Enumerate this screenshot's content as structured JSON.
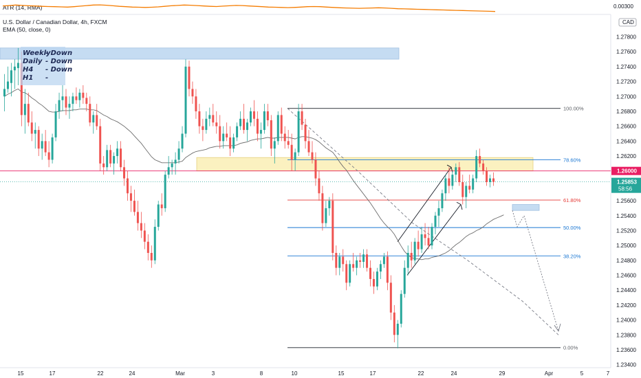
{
  "indicators": {
    "atr_label": "ATR (14, RMA)",
    "symbol_line": "U.S. Dollar / Canadian Dollar, 4h, FXCM",
    "ema_label": "EMA (50, close, 0)",
    "atr_level": "0.00300",
    "currency": "CAD"
  },
  "notes": [
    {
      "tf": "Weekly",
      "dir": "- Down"
    },
    {
      "tf": "Daily",
      "dir": "- Down"
    },
    {
      "tf": "H4",
      "dir": "- Down"
    },
    {
      "tf": "H1",
      "dir": "-"
    }
  ],
  "price_badges": {
    "level": "1.26000",
    "last": "1.25853",
    "countdown": "58:56"
  },
  "colors": {
    "up": "#26a69a",
    "down": "#ef5350",
    "ema": "#6d6d6d",
    "atr": "#f57c00",
    "zone_blue": "#bbd6f0",
    "zone_yellow": "#fbefb6",
    "level_red": "#e91e63",
    "fib_red": "#e53935",
    "fib_blue": "#1976d2",
    "fib_grey": "#5d6066"
  },
  "chart_data": {
    "type": "candlestick",
    "symbol": "USDCAD",
    "timeframe": "4h",
    "ylim": [
      1.2336,
      1.281
    ],
    "ytick_labels": [
      "1.27800",
      "1.27600",
      "1.27400",
      "1.27200",
      "1.27000",
      "1.26800",
      "1.26600",
      "1.26400",
      "1.26200",
      "1.26000",
      "1.25800",
      "1.25600",
      "1.25400",
      "1.25200",
      "1.25000",
      "1.24800",
      "1.24600",
      "1.24400",
      "1.24200",
      "1.24000",
      "1.23800",
      "1.23600",
      "1.23400"
    ],
    "xtick_labels": [
      "15",
      "17",
      "22",
      "24",
      "Mar",
      "3",
      "8",
      "10",
      "15",
      "17",
      "22",
      "24",
      "29",
      "Apr",
      "5",
      "7"
    ],
    "fib_levels": [
      {
        "label": "100.00%",
        "price": 1.2684
      },
      {
        "label": "78.60%",
        "price": 1.2615
      },
      {
        "label": "61.80%",
        "price": 1.2561
      },
      {
        "label": "50.00%",
        "price": 1.2524
      },
      {
        "label": "38.20%",
        "price": 1.2486
      },
      {
        "label": "0.00%",
        "price": 1.2363
      }
    ],
    "horizontal_level": 1.26,
    "last_price": 1.25853,
    "zones": [
      {
        "name": "resistance",
        "from": 1.275,
        "to": 1.2765
      },
      {
        "name": "supply",
        "from": 1.26,
        "to": 1.2618
      },
      {
        "name": "target",
        "from": 1.2547,
        "to": 1.2555
      }
    ],
    "path_points": [
      1.2684,
      1.26,
      1.253,
      1.248,
      1.2425,
      1.238
    ],
    "forecast_points": [
      1.2547,
      1.2525,
      1.254,
      1.2385
    ],
    "channel_lower": [
      1.246,
      1.2555
    ],
    "channel_upper": [
      1.2505,
      1.2605
    ],
    "series": [
      {
        "o": 1.27,
        "h": 1.273,
        "l": 1.268,
        "c": 1.271
      },
      {
        "o": 1.271,
        "h": 1.274,
        "l": 1.2705,
        "c": 1.272
      },
      {
        "o": 1.2718,
        "h": 1.2745,
        "l": 1.27,
        "c": 1.2735
      },
      {
        "o": 1.2735,
        "h": 1.275,
        "l": 1.271,
        "c": 1.274
      },
      {
        "o": 1.2738,
        "h": 1.2765,
        "l": 1.2715,
        "c": 1.2745
      },
      {
        "o": 1.2745,
        "h": 1.276,
        "l": 1.266,
        "c": 1.2675
      },
      {
        "o": 1.2675,
        "h": 1.271,
        "l": 1.265,
        "c": 1.269
      },
      {
        "o": 1.269,
        "h": 1.2705,
        "l": 1.266,
        "c": 1.2665
      },
      {
        "o": 1.2665,
        "h": 1.268,
        "l": 1.264,
        "c": 1.265
      },
      {
        "o": 1.265,
        "h": 1.2665,
        "l": 1.263,
        "c": 1.2655
      },
      {
        "o": 1.2655,
        "h": 1.266,
        "l": 1.262,
        "c": 1.263
      },
      {
        "o": 1.263,
        "h": 1.265,
        "l": 1.2615,
        "c": 1.264
      },
      {
        "o": 1.264,
        "h": 1.2655,
        "l": 1.262,
        "c": 1.2625
      },
      {
        "o": 1.2625,
        "h": 1.264,
        "l": 1.2605,
        "c": 1.2615
      },
      {
        "o": 1.2615,
        "h": 1.265,
        "l": 1.261,
        "c": 1.2645
      },
      {
        "o": 1.2645,
        "h": 1.269,
        "l": 1.264,
        "c": 1.268
      },
      {
        "o": 1.268,
        "h": 1.2705,
        "l": 1.267,
        "c": 1.2695
      },
      {
        "o": 1.2695,
        "h": 1.2715,
        "l": 1.268,
        "c": 1.27
      },
      {
        "o": 1.27,
        "h": 1.271,
        "l": 1.2675,
        "c": 1.2685
      },
      {
        "o": 1.2685,
        "h": 1.27,
        "l": 1.267,
        "c": 1.269
      },
      {
        "o": 1.269,
        "h": 1.2705,
        "l": 1.268,
        "c": 1.27
      },
      {
        "o": 1.27,
        "h": 1.2712,
        "l": 1.269,
        "c": 1.2695
      },
      {
        "o": 1.2695,
        "h": 1.271,
        "l": 1.2685,
        "c": 1.2705
      },
      {
        "o": 1.2705,
        "h": 1.2715,
        "l": 1.269,
        "c": 1.2698
      },
      {
        "o": 1.2698,
        "h": 1.2705,
        "l": 1.268,
        "c": 1.269
      },
      {
        "o": 1.269,
        "h": 1.27,
        "l": 1.266,
        "c": 1.2665
      },
      {
        "o": 1.2665,
        "h": 1.268,
        "l": 1.265,
        "c": 1.2675
      },
      {
        "o": 1.2675,
        "h": 1.269,
        "l": 1.2655,
        "c": 1.266
      },
      {
        "o": 1.266,
        "h": 1.267,
        "l": 1.26,
        "c": 1.261
      },
      {
        "o": 1.261,
        "h": 1.262,
        "l": 1.2595,
        "c": 1.2605
      },
      {
        "o": 1.2605,
        "h": 1.2635,
        "l": 1.26,
        "c": 1.2628
      },
      {
        "o": 1.2628,
        "h": 1.2635,
        "l": 1.2605,
        "c": 1.261
      },
      {
        "o": 1.261,
        "h": 1.2625,
        "l": 1.2595,
        "c": 1.262
      },
      {
        "o": 1.262,
        "h": 1.264,
        "l": 1.261,
        "c": 1.263
      },
      {
        "o": 1.263,
        "h": 1.264,
        "l": 1.26,
        "c": 1.2605
      },
      {
        "o": 1.2605,
        "h": 1.2615,
        "l": 1.258,
        "c": 1.259
      },
      {
        "o": 1.259,
        "h": 1.26,
        "l": 1.256,
        "c": 1.257
      },
      {
        "o": 1.257,
        "h": 1.258,
        "l": 1.2545,
        "c": 1.256
      },
      {
        "o": 1.256,
        "h": 1.2575,
        "l": 1.254,
        "c": 1.2545
      },
      {
        "o": 1.2545,
        "h": 1.256,
        "l": 1.252,
        "c": 1.253
      },
      {
        "o": 1.253,
        "h": 1.2545,
        "l": 1.251,
        "c": 1.252
      },
      {
        "o": 1.252,
        "h": 1.253,
        "l": 1.2495,
        "c": 1.2505
      },
      {
        "o": 1.2505,
        "h": 1.2515,
        "l": 1.248,
        "c": 1.249
      },
      {
        "o": 1.249,
        "h": 1.25,
        "l": 1.247,
        "c": 1.248
      },
      {
        "o": 1.248,
        "h": 1.2535,
        "l": 1.2475,
        "c": 1.2525
      },
      {
        "o": 1.2525,
        "h": 1.256,
        "l": 1.252,
        "c": 1.2555
      },
      {
        "o": 1.2555,
        "h": 1.257,
        "l": 1.254,
        "c": 1.255
      },
      {
        "o": 1.255,
        "h": 1.26,
        "l": 1.2545,
        "c": 1.2595
      },
      {
        "o": 1.2595,
        "h": 1.262,
        "l": 1.259,
        "c": 1.2605
      },
      {
        "o": 1.2605,
        "h": 1.2615,
        "l": 1.2595,
        "c": 1.261
      },
      {
        "o": 1.261,
        "h": 1.2625,
        "l": 1.2595,
        "c": 1.2615
      },
      {
        "o": 1.2615,
        "h": 1.264,
        "l": 1.261,
        "c": 1.263
      },
      {
        "o": 1.263,
        "h": 1.266,
        "l": 1.2625,
        "c": 1.265
      },
      {
        "o": 1.265,
        "h": 1.275,
        "l": 1.2645,
        "c": 1.274
      },
      {
        "o": 1.274,
        "h": 1.2748,
        "l": 1.27,
        "c": 1.271
      },
      {
        "o": 1.271,
        "h": 1.272,
        "l": 1.269,
        "c": 1.27
      },
      {
        "o": 1.27,
        "h": 1.271,
        "l": 1.267,
        "c": 1.268
      },
      {
        "o": 1.268,
        "h": 1.269,
        "l": 1.265,
        "c": 1.266
      },
      {
        "o": 1.266,
        "h": 1.267,
        "l": 1.264,
        "c": 1.2655
      },
      {
        "o": 1.2655,
        "h": 1.268,
        "l": 1.265,
        "c": 1.267
      },
      {
        "o": 1.267,
        "h": 1.2685,
        "l": 1.266,
        "c": 1.2675
      },
      {
        "o": 1.2675,
        "h": 1.269,
        "l": 1.266,
        "c": 1.2665
      },
      {
        "o": 1.2665,
        "h": 1.268,
        "l": 1.265,
        "c": 1.266
      },
      {
        "o": 1.266,
        "h": 1.2675,
        "l": 1.263,
        "c": 1.264
      },
      {
        "o": 1.264,
        "h": 1.266,
        "l": 1.263,
        "c": 1.265
      },
      {
        "o": 1.265,
        "h": 1.2665,
        "l": 1.264,
        "c": 1.2645
      },
      {
        "o": 1.2645,
        "h": 1.266,
        "l": 1.262,
        "c": 1.263
      },
      {
        "o": 1.263,
        "h": 1.265,
        "l": 1.2625,
        "c": 1.2645
      },
      {
        "o": 1.2645,
        "h": 1.2665,
        "l": 1.264,
        "c": 1.266
      },
      {
        "o": 1.266,
        "h": 1.268,
        "l": 1.2655,
        "c": 1.267
      },
      {
        "o": 1.267,
        "h": 1.269,
        "l": 1.265,
        "c": 1.2655
      },
      {
        "o": 1.2655,
        "h": 1.267,
        "l": 1.264,
        "c": 1.2665
      },
      {
        "o": 1.2665,
        "h": 1.2685,
        "l": 1.266,
        "c": 1.268
      },
      {
        "o": 1.268,
        "h": 1.2695,
        "l": 1.266,
        "c": 1.267
      },
      {
        "o": 1.267,
        "h": 1.268,
        "l": 1.264,
        "c": 1.265
      },
      {
        "o": 1.265,
        "h": 1.2665,
        "l": 1.263,
        "c": 1.2655
      },
      {
        "o": 1.2655,
        "h": 1.269,
        "l": 1.265,
        "c": 1.268
      },
      {
        "o": 1.268,
        "h": 1.269,
        "l": 1.266,
        "c": 1.2668
      },
      {
        "o": 1.2668,
        "h": 1.2675,
        "l": 1.262,
        "c": 1.263
      },
      {
        "o": 1.263,
        "h": 1.2645,
        "l": 1.261,
        "c": 1.264
      },
      {
        "o": 1.264,
        "h": 1.268,
        "l": 1.2635,
        "c": 1.2675
      },
      {
        "o": 1.2675,
        "h": 1.2685,
        "l": 1.264,
        "c": 1.265
      },
      {
        "o": 1.265,
        "h": 1.266,
        "l": 1.263,
        "c": 1.264
      },
      {
        "o": 1.264,
        "h": 1.2655,
        "l": 1.263,
        "c": 1.2635
      },
      {
        "o": 1.2635,
        "h": 1.265,
        "l": 1.26,
        "c": 1.2615
      },
      {
        "o": 1.2615,
        "h": 1.263,
        "l": 1.26,
        "c": 1.2625
      },
      {
        "o": 1.2625,
        "h": 1.269,
        "l": 1.262,
        "c": 1.268
      },
      {
        "o": 1.268,
        "h": 1.269,
        "l": 1.2655,
        "c": 1.2662
      },
      {
        "o": 1.2662,
        "h": 1.267,
        "l": 1.263,
        "c": 1.264
      },
      {
        "o": 1.264,
        "h": 1.2655,
        "l": 1.262,
        "c": 1.2625
      },
      {
        "o": 1.2625,
        "h": 1.264,
        "l": 1.261,
        "c": 1.2615
      },
      {
        "o": 1.2615,
        "h": 1.2625,
        "l": 1.258,
        "c": 1.259
      },
      {
        "o": 1.259,
        "h": 1.26,
        "l": 1.256,
        "c": 1.257
      },
      {
        "o": 1.257,
        "h": 1.258,
        "l": 1.252,
        "c": 1.253
      },
      {
        "o": 1.253,
        "h": 1.256,
        "l": 1.2525,
        "c": 1.255
      },
      {
        "o": 1.255,
        "h": 1.2565,
        "l": 1.254,
        "c": 1.256
      },
      {
        "o": 1.256,
        "h": 1.257,
        "l": 1.248,
        "c": 1.249
      },
      {
        "o": 1.249,
        "h": 1.25,
        "l": 1.246,
        "c": 1.247
      },
      {
        "o": 1.247,
        "h": 1.249,
        "l": 1.246,
        "c": 1.2485
      },
      {
        "o": 1.2485,
        "h": 1.2495,
        "l": 1.2465,
        "c": 1.2475
      },
      {
        "o": 1.2475,
        "h": 1.248,
        "l": 1.244,
        "c": 1.245
      },
      {
        "o": 1.245,
        "h": 1.248,
        "l": 1.2445,
        "c": 1.2475
      },
      {
        "o": 1.2475,
        "h": 1.249,
        "l": 1.2465,
        "c": 1.247
      },
      {
        "o": 1.247,
        "h": 1.2485,
        "l": 1.246,
        "c": 1.248
      },
      {
        "o": 1.248,
        "h": 1.249,
        "l": 1.247,
        "c": 1.2478
      },
      {
        "o": 1.2478,
        "h": 1.2495,
        "l": 1.247,
        "c": 1.2488
      },
      {
        "o": 1.2488,
        "h": 1.2495,
        "l": 1.2465,
        "c": 1.247
      },
      {
        "o": 1.247,
        "h": 1.248,
        "l": 1.2445,
        "c": 1.2455
      },
      {
        "o": 1.2455,
        "h": 1.2465,
        "l": 1.2435,
        "c": 1.2445
      },
      {
        "o": 1.2445,
        "h": 1.247,
        "l": 1.244,
        "c": 1.2465
      },
      {
        "o": 1.2465,
        "h": 1.248,
        "l": 1.2455,
        "c": 1.2475
      },
      {
        "o": 1.2475,
        "h": 1.249,
        "l": 1.247,
        "c": 1.2485
      },
      {
        "o": 1.2485,
        "h": 1.2492,
        "l": 1.244,
        "c": 1.245
      },
      {
        "o": 1.245,
        "h": 1.246,
        "l": 1.24,
        "c": 1.241
      },
      {
        "o": 1.241,
        "h": 1.242,
        "l": 1.237,
        "c": 1.238
      },
      {
        "o": 1.238,
        "h": 1.24,
        "l": 1.2362,
        "c": 1.2395
      },
      {
        "o": 1.2395,
        "h": 1.244,
        "l": 1.239,
        "c": 1.2435
      },
      {
        "o": 1.2435,
        "h": 1.248,
        "l": 1.243,
        "c": 1.247
      },
      {
        "o": 1.247,
        "h": 1.25,
        "l": 1.246,
        "c": 1.249
      },
      {
        "o": 1.249,
        "h": 1.2505,
        "l": 1.247,
        "c": 1.248
      },
      {
        "o": 1.248,
        "h": 1.251,
        "l": 1.2475,
        "c": 1.2505
      },
      {
        "o": 1.2505,
        "h": 1.252,
        "l": 1.2485,
        "c": 1.2495
      },
      {
        "o": 1.2495,
        "h": 1.2525,
        "l": 1.249,
        "c": 1.2515
      },
      {
        "o": 1.2515,
        "h": 1.253,
        "l": 1.25,
        "c": 1.251
      },
      {
        "o": 1.251,
        "h": 1.2525,
        "l": 1.2495,
        "c": 1.25
      },
      {
        "o": 1.25,
        "h": 1.253,
        "l": 1.2495,
        "c": 1.2525
      },
      {
        "o": 1.2525,
        "h": 1.2545,
        "l": 1.2515,
        "c": 1.254
      },
      {
        "o": 1.254,
        "h": 1.256,
        "l": 1.2525,
        "c": 1.255
      },
      {
        "o": 1.255,
        "h": 1.2575,
        "l": 1.2545,
        "c": 1.257
      },
      {
        "o": 1.257,
        "h": 1.2595,
        "l": 1.256,
        "c": 1.259
      },
      {
        "o": 1.259,
        "h": 1.2605,
        "l": 1.257,
        "c": 1.258
      },
      {
        "o": 1.258,
        "h": 1.26,
        "l": 1.2575,
        "c": 1.2595
      },
      {
        "o": 1.2595,
        "h": 1.261,
        "l": 1.2585,
        "c": 1.2605
      },
      {
        "o": 1.2605,
        "h": 1.2612,
        "l": 1.258,
        "c": 1.2585
      },
      {
        "o": 1.2585,
        "h": 1.2595,
        "l": 1.2555,
        "c": 1.2565
      },
      {
        "o": 1.2565,
        "h": 1.2585,
        "l": 1.255,
        "c": 1.258
      },
      {
        "o": 1.258,
        "h": 1.2595,
        "l": 1.257,
        "c": 1.2575
      },
      {
        "o": 1.2575,
        "h": 1.2595,
        "l": 1.257,
        "c": 1.259
      },
      {
        "o": 1.259,
        "h": 1.2628,
        "l": 1.2585,
        "c": 1.262
      },
      {
        "o": 1.262,
        "h": 1.263,
        "l": 1.2605,
        "c": 1.261
      },
      {
        "o": 1.261,
        "h": 1.2615,
        "l": 1.2595,
        "c": 1.26
      },
      {
        "o": 1.26,
        "h": 1.2605,
        "l": 1.258,
        "c": 1.2585
      },
      {
        "o": 1.2585,
        "h": 1.2595,
        "l": 1.2578,
        "c": 1.259
      },
      {
        "o": 1.259,
        "h": 1.2598,
        "l": 1.258,
        "c": 1.25853
      }
    ],
    "ema": [
      1.27,
      1.2703,
      1.2705,
      1.2708,
      1.271,
      1.2706,
      1.2705,
      1.2702,
      1.2698,
      1.2695,
      1.2691,
      1.2688,
      1.2684,
      1.268,
      1.2679,
      1.2679,
      1.268,
      1.2681,
      1.2681,
      1.2681,
      1.2682,
      1.2682,
      1.2683,
      1.2683,
      1.2683,
      1.2682,
      1.2682,
      1.2681,
      1.2678,
      1.2675,
      1.2673,
      1.267,
      1.2668,
      1.2666,
      1.2663,
      1.266,
      1.2656,
      1.2652,
      1.2647,
      1.2642,
      1.2637,
      1.2631,
      1.2625,
      1.2619,
      1.2615,
      1.2613,
      1.2611,
      1.2611,
      1.2611,
      1.2611,
      1.2611,
      1.2612,
      1.2613,
      1.2618,
      1.2621,
      1.2624,
      1.2626,
      1.2627,
      1.2628,
      1.2629,
      1.2631,
      1.2632,
      1.2633,
      1.2633,
      1.2634,
      1.2634,
      1.2634,
      1.2634,
      1.2635,
      1.2637,
      1.2638,
      1.2639,
      1.2641,
      1.2642,
      1.2643,
      1.2643,
      1.2644,
      1.2645,
      1.2644,
      1.2644,
      1.2645,
      1.2645,
      1.2645,
      1.2645,
      1.2644,
      1.2643,
      1.2645,
      1.2646,
      1.2646,
      1.2645,
      1.2644,
      1.2642,
      1.2639,
      1.2635,
      1.2631,
      1.2628,
      1.2625,
      1.2619,
      1.2612,
      1.2606,
      1.2601,
      1.2594,
      1.2587,
      1.2581,
      1.2575,
      1.2569,
      1.2563,
      1.2557,
      1.255,
      1.2543,
      1.2536,
      1.253,
      1.2525,
      1.2521,
      1.2515,
      1.2507,
      1.2499,
      1.2492,
      1.2487,
      1.2484,
      1.2482,
      1.2482,
      1.2481,
      1.2482,
      1.2482,
      1.2484,
      1.2485,
      1.2486,
      1.2488,
      1.249,
      1.2493,
      1.2497,
      1.2501,
      1.2504,
      1.2508,
      1.2512,
      1.2515,
      1.2517,
      1.252,
      1.2522,
      1.2525,
      1.2529,
      1.2532,
      1.2535,
      1.2537,
      1.2539,
      1.2541
    ],
    "atr": [
      0.003,
      0.00302,
      0.00305,
      0.00303,
      0.00301,
      0.003,
      0.00298,
      0.00297,
      0.00296,
      0.00295,
      0.00294,
      0.00296,
      0.00299,
      0.00302,
      0.00305,
      0.00306,
      0.00304,
      0.00301,
      0.00298,
      0.00296,
      0.00294,
      0.00293,
      0.00292,
      0.00293,
      0.00295,
      0.00298,
      0.00301,
      0.00303,
      0.00305,
      0.00304,
      0.00302,
      0.003,
      0.00298,
      0.00297,
      0.00299,
      0.00301,
      0.00303,
      0.00302,
      0.003,
      0.00298,
      0.00296,
      0.00294,
      0.00293,
      0.00292,
      0.00291,
      0.00292,
      0.00294,
      0.00296,
      0.00297,
      0.00296,
      0.00294,
      0.00292,
      0.0029,
      0.00289,
      0.00288,
      0.00287,
      0.00288,
      0.00289,
      0.0029,
      0.00289,
      0.00287,
      0.00285,
      0.00284,
      0.00283,
      0.00282,
      0.00281,
      0.0028,
      0.00279,
      0.00278,
      0.00277,
      0.00276,
      0.00275,
      0.00274,
      0.00273,
      0.00272,
      0.00271,
      0.0027
    ]
  }
}
